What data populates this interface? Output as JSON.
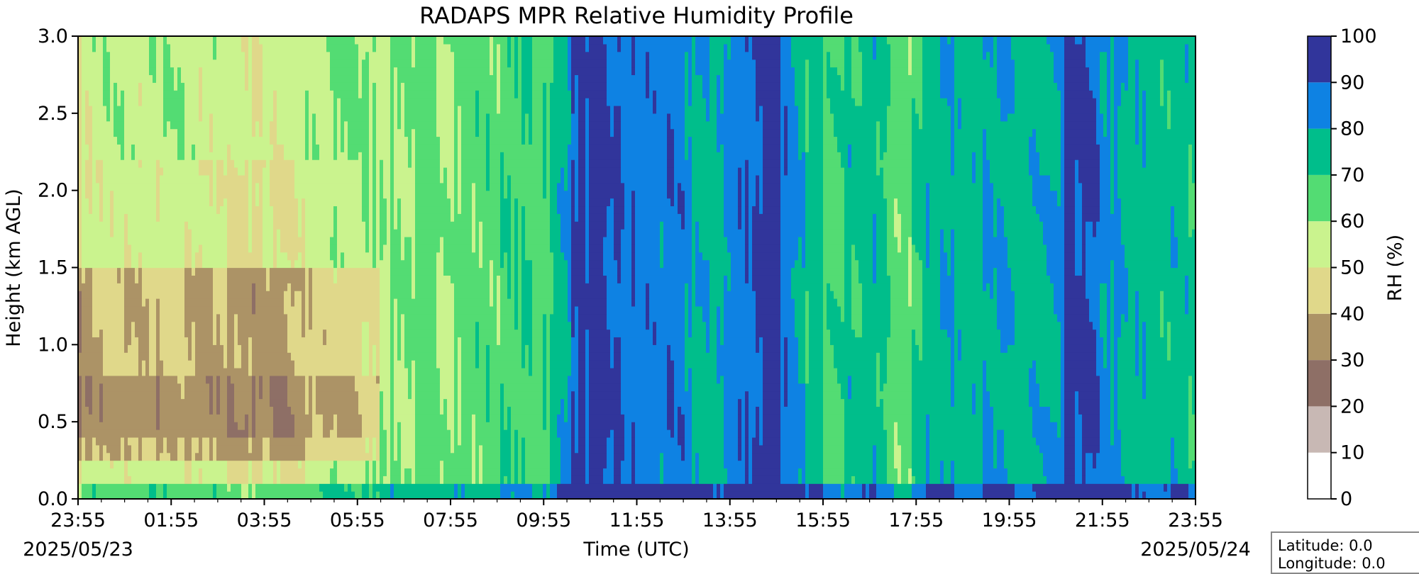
{
  "chart_data": {
    "type": "heatmap",
    "title": "RADAPS MPR Relative Humidity Profile",
    "xlabel": "Time (UTC)",
    "ylabel": "Height (km AGL)",
    "x_tick_labels": [
      "23:55",
      "01:55",
      "03:55",
      "05:55",
      "07:55",
      "09:55",
      "11:55",
      "13:55",
      "15:55",
      "17:55",
      "19:55",
      "21:55",
      "23:55"
    ],
    "date_labels": {
      "start": "2025/05/23",
      "end": "2025/05/24"
    },
    "x_range": [
      "2025/05/23 23:55",
      "2025/05/24 23:55"
    ],
    "y_ticks": [
      0.0,
      0.5,
      1.0,
      1.5,
      2.0,
      2.5,
      3.0
    ],
    "y_tick_labels": [
      "0.0",
      "0.5",
      "1.0",
      "1.5",
      "2.0",
      "2.5",
      "3.0"
    ],
    "ylim": [
      0,
      3
    ],
    "grid": false,
    "colorbar": {
      "label": "RH (%)",
      "levels": [
        0,
        10,
        20,
        30,
        40,
        50,
        60,
        70,
        80,
        90,
        100
      ],
      "tick_labels": [
        "0",
        "10",
        "20",
        "30",
        "40",
        "50",
        "60",
        "70",
        "80",
        "90",
        "100"
      ],
      "colors": [
        "#ffffff",
        "#c8b8b4",
        "#8e6f66",
        "#ac9366",
        "#e0d88a",
        "#caf38e",
        "#53dc73",
        "#00be8b",
        "#0e82e3",
        "#31359b"
      ]
    },
    "series": [
      {
        "time_h": [
          0.0,
          0.4,
          2.0,
          3.0,
          4.0,
          6.3,
          8.0,
          9.0,
          10.2,
          10.7,
          11.5,
          12.0,
          13.0,
          13.5,
          15.0,
          15.3,
          16.0,
          17.0,
          17.8,
          18.2,
          19.5,
          21.0,
          21.3,
          22.5,
          24.0
        ],
        "rh_0_3km": [
          48,
          52,
          53,
          50,
          48,
          60,
          62,
          66,
          70,
          92,
          90,
          86,
          84,
          75,
          98,
          80,
          70,
          76,
          62,
          78,
          78,
          76,
          96,
          76,
          74
        ]
      }
    ],
    "annotations": [
      "Latitude: 0.0",
      "Longitude: 0.0"
    ]
  },
  "info_box": {
    "latitude": "Latitude: 0.0",
    "longitude": "Longitude: 0.0"
  }
}
